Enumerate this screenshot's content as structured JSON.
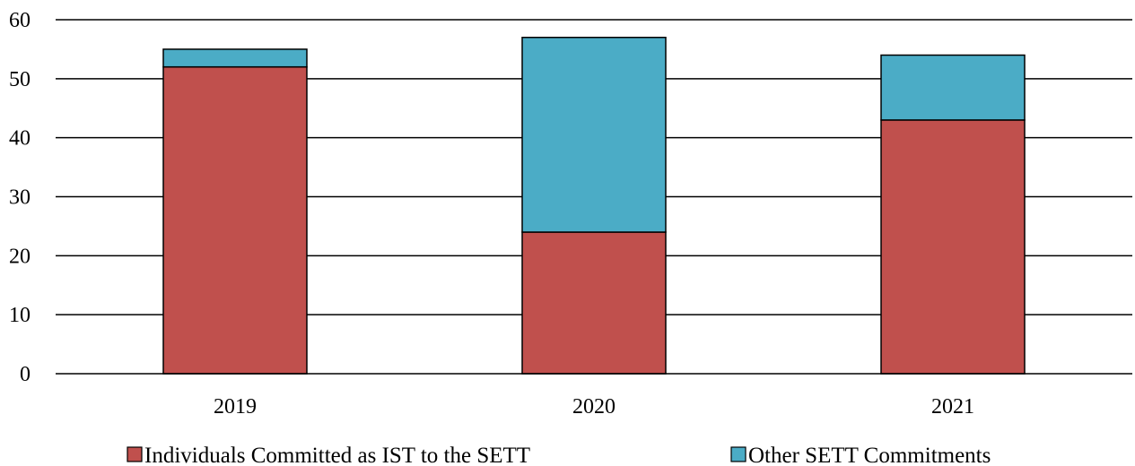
{
  "chart_data": {
    "type": "bar",
    "stacked": true,
    "title": "",
    "xlabel": "",
    "ylabel": "",
    "categories": [
      "2019",
      "2020",
      "2021"
    ],
    "series": [
      {
        "name": "Individuals Committed as IST to the SETT",
        "values": [
          52,
          24,
          43
        ],
        "color": "#c0504d"
      },
      {
        "name": "Other SETT Commitments",
        "values": [
          3,
          33,
          11
        ],
        "color": "#4bacc6"
      }
    ],
    "ylim": [
      0,
      60
    ],
    "yticks": [
      0,
      10,
      20,
      30,
      40,
      50,
      60
    ],
    "grid": true,
    "legend_position": "bottom"
  }
}
